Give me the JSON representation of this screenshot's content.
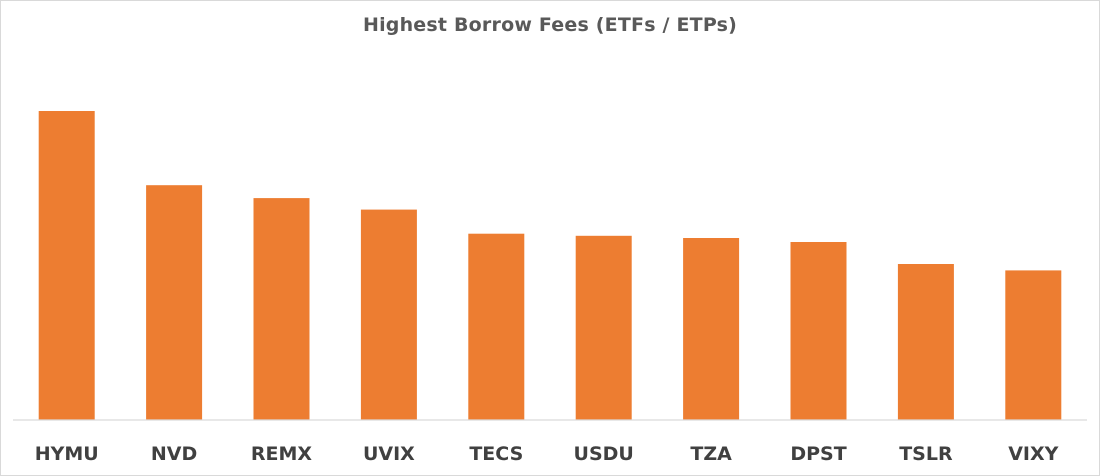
{
  "chart_data": {
    "type": "bar",
    "title": "Highest Borrow Fees (ETFs / ETPs)",
    "xlabel": "",
    "ylabel": "",
    "categories": [
      "HYMU",
      "NVD",
      "REMX",
      "UVIX",
      "TECS",
      "USDU",
      "TZA",
      "DPST",
      "TSLR",
      "VIXY"
    ],
    "values": [
      100,
      76,
      71.8,
      68.1,
      60.3,
      59.6,
      58.9,
      57.6,
      50.5,
      48.4
    ],
    "ylim": [
      0,
      100
    ],
    "grid": false,
    "legend": "none",
    "bar_color": "#ed7d31",
    "axis_color": "#d9d9d9"
  }
}
